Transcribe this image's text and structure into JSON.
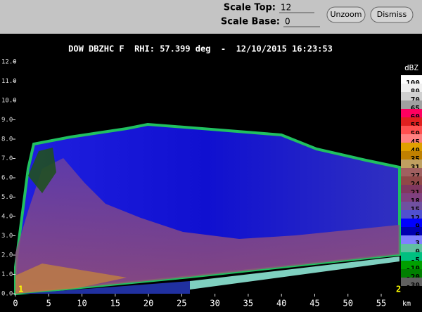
{
  "controls": {
    "scale_top_label": "Scale Top:",
    "scale_top_value": "12",
    "scale_base_label": "Scale Base:",
    "scale_base_value": "0",
    "buttons": [
      "Unzoom",
      "Dismiss"
    ]
  },
  "plot": {
    "title": "DOW DBZHC F  RHI: 57.399 deg  -  12/10/2015 16:23:53",
    "y_labels": [
      "12.0",
      "11.0",
      "10.0",
      "9.0",
      "8.0",
      "7.0",
      "6.0",
      "5.0",
      "4.0",
      "3.0",
      "2.0",
      "1.0",
      "0.0"
    ],
    "x_labels": [
      "0",
      "5",
      "10",
      "15",
      "20",
      "25",
      "30",
      "35",
      "40",
      "45",
      "50",
      "55"
    ],
    "x_unit": "km",
    "corner_left": "1",
    "corner_right": "2"
  },
  "colorbar": {
    "unit": "dBZ",
    "labels": [
      "100",
      "80",
      "70",
      "65",
      "60",
      "55",
      "50",
      "45",
      "40",
      "35",
      "31",
      "27",
      "24",
      "21",
      "18",
      "15",
      "12",
      "9",
      "6",
      "3",
      "0",
      "-5",
      "-10",
      "-20",
      "-30"
    ],
    "colors": [
      "#ffffff",
      "#f0f0f0",
      "#d0d0d0",
      "#a0a0a0",
      "#ff0060",
      "#e02020",
      "#ff5050",
      "#ff8080",
      "#e0a000",
      "#c08000",
      "#c0a060",
      "#a06060",
      "#904848",
      "#803860",
      "#804080",
      "#7050a0",
      "#5050d0",
      "#0000ff",
      "#0000b0",
      "#8080ff",
      "#60c0a0",
      "#00c080",
      "#00a000",
      "#008000",
      "#606060"
    ]
  }
}
